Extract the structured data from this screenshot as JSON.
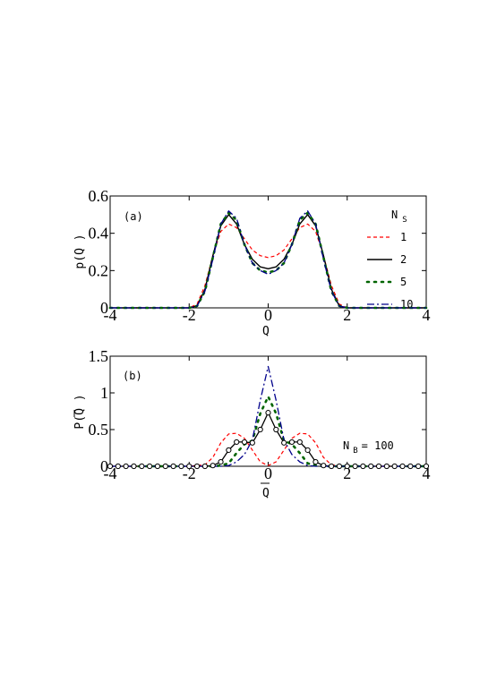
{
  "chart_data": [
    {
      "type": "line",
      "panel_label": "(a)",
      "xlabel": "Q",
      "ylabel": "p(Q )",
      "xlim": [
        -4,
        4
      ],
      "ylim": [
        0,
        0.6
      ],
      "x_ticks": [
        "-4",
        "-2",
        "0",
        "2",
        "4"
      ],
      "y_ticks": [
        "0",
        "0.2",
        "0.4",
        "0.6"
      ],
      "legend_title": "N",
      "legend_title_sub": "S",
      "legend_position": "top-right",
      "x": [
        -4,
        -3,
        -2,
        -1.8,
        -1.6,
        -1.4,
        -1.2,
        -1.0,
        -0.8,
        -0.6,
        -0.4,
        -0.2,
        0,
        0.2,
        0.4,
        0.6,
        0.8,
        1.0,
        1.2,
        1.4,
        1.6,
        1.8,
        2,
        3,
        4
      ],
      "series": [
        {
          "name": "1",
          "color": "#ff0000",
          "dash": "4,3",
          "width": 1.2,
          "values": [
            0,
            0,
            0,
            0.02,
            0.12,
            0.28,
            0.41,
            0.45,
            0.43,
            0.37,
            0.31,
            0.28,
            0.27,
            0.28,
            0.31,
            0.37,
            0.43,
            0.45,
            0.41,
            0.28,
            0.12,
            0.02,
            0,
            0,
            0
          ]
        },
        {
          "name": "2",
          "color": "#000000",
          "dash": "",
          "width": 1.4,
          "values": [
            0,
            0,
            0,
            0.01,
            0.1,
            0.28,
            0.44,
            0.5,
            0.45,
            0.34,
            0.26,
            0.22,
            0.21,
            0.22,
            0.26,
            0.34,
            0.45,
            0.5,
            0.44,
            0.28,
            0.1,
            0.01,
            0,
            0,
            0
          ]
        },
        {
          "name": "5",
          "color": "#006400",
          "dash": "2,6",
          "width": 2.6,
          "values": [
            0,
            0,
            0,
            0.01,
            0.09,
            0.27,
            0.45,
            0.51,
            0.47,
            0.34,
            0.24,
            0.2,
            0.19,
            0.2,
            0.24,
            0.34,
            0.47,
            0.51,
            0.45,
            0.27,
            0.09,
            0.01,
            0,
            0,
            0
          ]
        },
        {
          "name": "10",
          "color": "#00008b",
          "dash": "8,3,2,3",
          "width": 1.3,
          "values": [
            0,
            0,
            0,
            0.01,
            0.09,
            0.26,
            0.45,
            0.52,
            0.48,
            0.34,
            0.24,
            0.2,
            0.18,
            0.2,
            0.24,
            0.34,
            0.48,
            0.52,
            0.45,
            0.26,
            0.09,
            0.01,
            0,
            0,
            0
          ]
        }
      ]
    },
    {
      "type": "line",
      "panel_label": "(b)",
      "xlabel": "Q",
      "ylabel": "P(Q )",
      "xlim": [
        -4,
        4
      ],
      "ylim": [
        0,
        1.5
      ],
      "x_ticks": [
        "-4",
        "-2",
        "0",
        "2",
        "4"
      ],
      "y_ticks": [
        "0",
        "0.5",
        "1",
        "1.5"
      ],
      "annotation_main": "N",
      "annotation_sub": "B",
      "annotation_rest": "= 100",
      "x": [
        -4,
        -2,
        -1.6,
        -1.4,
        -1.2,
        -1.0,
        -0.8,
        -0.6,
        -0.4,
        -0.2,
        0,
        0.2,
        0.4,
        0.6,
        0.8,
        1.0,
        1.2,
        1.4,
        1.6,
        2,
        4
      ],
      "series": [
        {
          "name": "1",
          "color": "#ff0000",
          "dash": "4,3",
          "width": 1.2,
          "values": [
            0,
            0,
            0.02,
            0.12,
            0.32,
            0.44,
            0.45,
            0.38,
            0.22,
            0.06,
            0.01,
            0.06,
            0.22,
            0.38,
            0.45,
            0.44,
            0.32,
            0.12,
            0.02,
            0,
            0
          ]
        },
        {
          "name": "2",
          "color": "#000000",
          "dash": "",
          "width": 1.3,
          "values": [
            0,
            0,
            0,
            0.01,
            0.06,
            0.22,
            0.33,
            0.33,
            0.32,
            0.5,
            0.73,
            0.5,
            0.32,
            0.33,
            0.33,
            0.22,
            0.06,
            0.01,
            0,
            0,
            0
          ]
        },
        {
          "name": "5",
          "color": "#006400",
          "dash": "2,6",
          "width": 2.6,
          "values": [
            0,
            0,
            0,
            0,
            0.01,
            0.04,
            0.18,
            0.3,
            0.35,
            0.72,
            0.95,
            0.72,
            0.35,
            0.3,
            0.18,
            0.04,
            0.01,
            0,
            0,
            0,
            0
          ]
        },
        {
          "name": "10",
          "color": "#00008b",
          "dash": "8,3,2,3",
          "width": 1.3,
          "values": [
            0,
            0,
            0,
            0,
            0,
            0.01,
            0.06,
            0.16,
            0.36,
            0.9,
            1.36,
            0.9,
            0.36,
            0.16,
            0.06,
            0.01,
            0,
            0,
            0,
            0,
            0
          ]
        }
      ],
      "markers": {
        "series": "2",
        "x": [
          -4,
          -3.8,
          -3.6,
          -3.4,
          -3.2,
          -3.0,
          -2.8,
          -2.6,
          -2.4,
          -2.2,
          -2.0,
          -1.8,
          -1.6,
          -1.4,
          -1.2,
          -1.0,
          -0.8,
          -0.6,
          -0.4,
          -0.2,
          0,
          0.2,
          0.4,
          0.6,
          0.8,
          1.0,
          1.2,
          1.4,
          1.6,
          1.8,
          2.0,
          2.2,
          2.4,
          2.6,
          2.8,
          3.0,
          3.2,
          3.4,
          3.6,
          3.8,
          4.0
        ],
        "values": [
          0,
          0,
          0,
          0,
          0,
          0,
          0,
          0,
          0,
          0,
          0,
          0,
          0,
          0.01,
          0.06,
          0.22,
          0.33,
          0.33,
          0.32,
          0.5,
          0.73,
          0.5,
          0.32,
          0.33,
          0.33,
          0.22,
          0.06,
          0.01,
          0,
          0,
          0,
          0,
          0,
          0,
          0,
          0,
          0,
          0,
          0,
          0,
          0
        ]
      }
    }
  ]
}
